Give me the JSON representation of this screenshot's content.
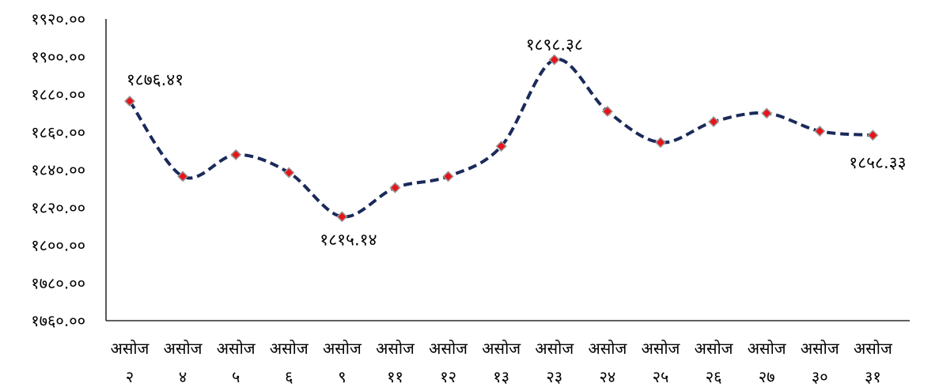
{
  "chart_data": {
    "type": "line",
    "title": "",
    "xlabel": "",
    "ylabel": "",
    "categories": [
      [
        "असोज",
        "२"
      ],
      [
        "असोज",
        "४"
      ],
      [
        "असोज",
        "५"
      ],
      [
        "असोज",
        "६"
      ],
      [
        "असोज",
        "९"
      ],
      [
        "असोज",
        "११"
      ],
      [
        "असोज",
        "१२"
      ],
      [
        "असोज",
        "१३"
      ],
      [
        "असोज",
        "२३"
      ],
      [
        "असोज",
        "२४"
      ],
      [
        "असोज",
        "२५"
      ],
      [
        "असोज",
        "२६"
      ],
      [
        "असोज",
        "२७"
      ],
      [
        "असोज",
        "३०"
      ],
      [
        "असोज",
        "३१"
      ]
    ],
    "series": [
      {
        "values": [
          1876.41,
          1836.5,
          1848.0,
          1838.5,
          1815.14,
          1830.5,
          1836.5,
          1852.5,
          1898.38,
          1871.0,
          1854.5,
          1865.5,
          1870.0,
          1860.5,
          1858.33
        ],
        "line_color": "#1a2a5a",
        "marker_color": "#e8141a",
        "marker_border": "#9a9a9a"
      }
    ],
    "ylim": [
      1760,
      1920
    ],
    "yticks": [
      "१७६०.००",
      "१७८०.००",
      "१८००.००",
      "१८२०.००",
      "१८४०.००",
      "१८६०.००",
      "१८८०.००",
      "१९००.००",
      "१९२०.००"
    ],
    "data_labels": [
      {
        "index": 0,
        "text": "१८७६.४१"
      },
      {
        "index": 4,
        "text": "१८१५.१४"
      },
      {
        "index": 8,
        "text": "१८९८.३८"
      },
      {
        "index": 14,
        "text": "१८५८.३३"
      }
    ],
    "grid": false,
    "legend": "none"
  }
}
